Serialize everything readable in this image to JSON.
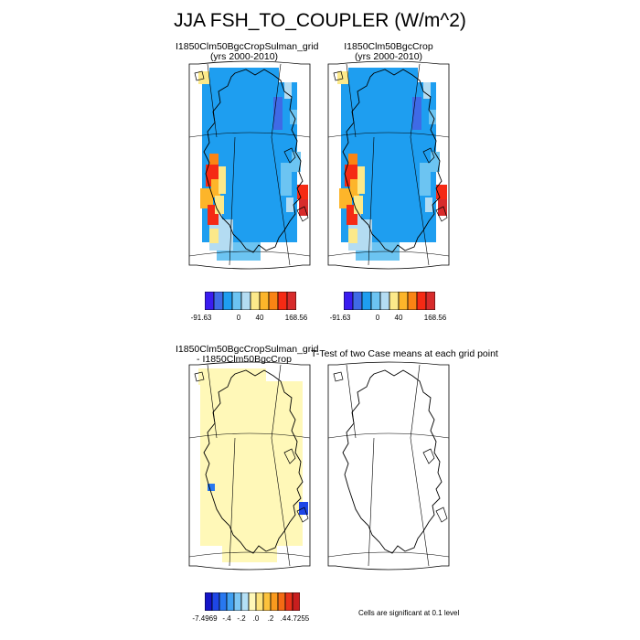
{
  "figure": {
    "title": "JJA FSH_TO_COUPLER (W/m^2)",
    "note": "Cells are significant at 0.1 level"
  },
  "panels": [
    {
      "title_line1": "I1850Clm50BgcCropSulman_grid",
      "title_line2": "(yrs 2000-2010)"
    },
    {
      "title_line1": "I1850Clm50BgcCrop",
      "title_line2": "(yrs 2000-2010)"
    },
    {
      "title_line1": "I1850Clm50BgcCropSulman_grid",
      "title_line2": "- I1850Clm50BgcCrop"
    },
    {
      "title_line1": "T-Test of two Case means at each grid point",
      "title_line2": ""
    }
  ],
  "colorbar_top": {
    "colors": [
      "#3a1cf0",
      "#3f6ae6",
      "#1e9ef0",
      "#6cc4f2",
      "#b4dcf2",
      "#fce98a",
      "#fdb52a",
      "#fa8414",
      "#f52a14",
      "#d72b2b"
    ],
    "labels": [
      "-91.63",
      "0",
      "40",
      "168.56"
    ]
  },
  "colorbar_bottom": {
    "colors": [
      "#1414c8",
      "#1e46e6",
      "#2878f0",
      "#40a0f2",
      "#7cc6f4",
      "#b4e0f6",
      "#fff8b8",
      "#fde37c",
      "#fcc23c",
      "#fa9a1e",
      "#f46a14",
      "#e8321a",
      "#c81e1e"
    ],
    "labels": [
      "-7.4969",
      "-.4",
      "-.2",
      ".0",
      ".2",
      ".4",
      "4.7255"
    ]
  },
  "chart_data": [
    {
      "type": "heatmap",
      "title": "I1850Clm50BgcCropSulman_grid (yrs 2000-2010)",
      "colorbar_min": -91.63,
      "colorbar_max": 168.56,
      "colorbar_ticks": [
        -91.63,
        0,
        40,
        168.56
      ]
    },
    {
      "type": "heatmap",
      "title": "I1850Clm50BgcCrop (yrs 2000-2010)",
      "colorbar_min": -91.63,
      "colorbar_max": 168.56,
      "colorbar_ticks": [
        -91.63,
        0,
        40,
        168.56
      ]
    },
    {
      "type": "heatmap",
      "title": "I1850Clm50BgcCropSulman_grid - I1850Clm50BgcCrop",
      "colorbar_min": -7.4969,
      "colorbar_max": 4.7255,
      "colorbar_ticks": [
        -7.4969,
        -0.4,
        -0.2,
        0.0,
        0.2,
        0.4,
        4.7255
      ]
    },
    {
      "type": "heatmap",
      "title": "T-Test of two Case means at each grid point",
      "note": "Cells are significant at 0.1 level"
    }
  ]
}
